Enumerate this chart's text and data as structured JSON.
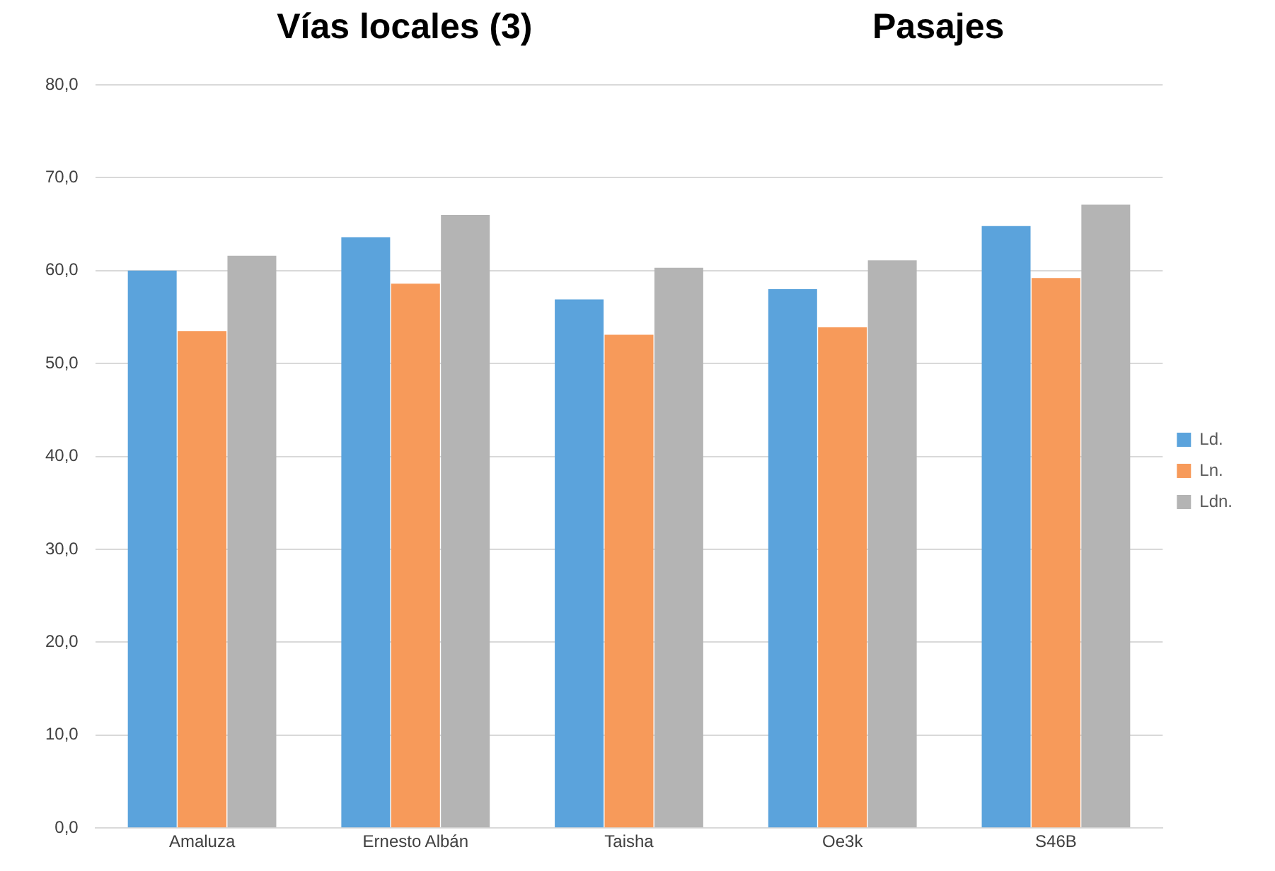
{
  "chart_data": {
    "type": "bar",
    "categories": [
      "Amaluza",
      "Ernesto Albán",
      "Taisha",
      "Oe3k",
      "S46B"
    ],
    "series": [
      {
        "name": "Ld.",
        "color": "#5ba3dc",
        "values": [
          60.0,
          63.6,
          56.9,
          58.0,
          64.8
        ]
      },
      {
        "name": "Ln.",
        "color": "#f79a5a",
        "values": [
          53.5,
          58.6,
          53.1,
          53.9,
          59.2
        ]
      },
      {
        "name": "Ldn.",
        "color": "#b4b4b4",
        "values": [
          61.6,
          66.0,
          60.3,
          61.1,
          67.1
        ]
      }
    ],
    "annotations": [
      "Vías locales (3)",
      "Pasajes"
    ],
    "ylim": [
      0,
      80
    ],
    "yticks": [
      {
        "value": 0,
        "label": "0,0"
      },
      {
        "value": 10,
        "label": "10,0"
      },
      {
        "value": 20,
        "label": "20,0"
      },
      {
        "value": 30,
        "label": "30,0"
      },
      {
        "value": 40,
        "label": "40,0"
      },
      {
        "value": 50,
        "label": "50,0"
      },
      {
        "value": 60,
        "label": "60,0"
      },
      {
        "value": 70,
        "label": "70,0"
      },
      {
        "value": 80,
        "label": "80,0"
      }
    ],
    "grid": "y",
    "legend": "right"
  }
}
